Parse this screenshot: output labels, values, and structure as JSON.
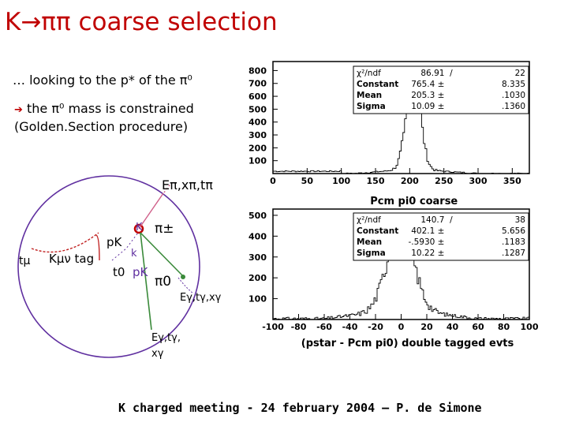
{
  "title": "K→ππ coarse selection",
  "subtitle_line1": "… looking to the p* of the π⁰",
  "subtitle_arrow": "➔",
  "subtitle_line2": " the π⁰ mass is constrained",
  "subtitle_line3": "(Golden.Section procedure)",
  "footer": "K charged meeting  - 24 february 2004 – P. de Simone",
  "colors": {
    "title": "#c00000",
    "track_green": "#3a8a3a",
    "track_violet": "#6030a0",
    "track_pink": "#d0608a",
    "track_red": "#c02020"
  },
  "diagram": {
    "label_pi_track": "Eπ,xπ,tπ",
    "label_t_mu": "tμ",
    "label_k_tag": "Kμν tag",
    "label_pk": "pK",
    "label_k": "K",
    "label_k_small": "k",
    "label_t0": "t0",
    "label_pk2": "pK",
    "label_pi_pm": "π±",
    "label_pi0": "π0",
    "label_gamma1": "Eγ,tγ,xγ",
    "label_gamma2_a": "Eγ,tγ,",
    "label_gamma2_b": "xγ"
  },
  "chart_data": [
    {
      "type": "histogram",
      "title": "",
      "xlabel": "",
      "xlim": [
        0,
        375
      ],
      "ylim": [
        0,
        870
      ],
      "xticks": [
        "0",
        "50",
        "100",
        "150",
        "200",
        "250",
        "300",
        "350"
      ],
      "yticks": [
        "100",
        "200",
        "300",
        "400",
        "500",
        "600",
        "700",
        "800"
      ],
      "fit": {
        "function": "gaussian",
        "constant": 765.4,
        "mean": 205.3,
        "sigma": 10.09
      },
      "stats": [
        {
          "name": "χ²/ndf",
          "value": "86.91",
          "sep": "/",
          "error": "22"
        },
        {
          "name": "Constant",
          "value": "765.4 ±",
          "sep": "",
          "error": "8.335"
        },
        {
          "name": "Mean",
          "value": "205.3 ±",
          "sep": "",
          "error": ".1030"
        },
        {
          "name": "Sigma",
          "value": "10.09 ±",
          "sep": "",
          "error": ".1360"
        }
      ]
    },
    {
      "type": "histogram",
      "title": "Pcm pi0 coarse",
      "xlabel": "(pstar - Pcm pi0) double tagged evts",
      "xlim": [
        -100,
        100
      ],
      "ylim": [
        0,
        530
      ],
      "xticks": [
        "-100",
        "-80",
        "-60",
        "-40",
        "-20",
        "0",
        "20",
        "40",
        "60",
        "80",
        "100"
      ],
      "yticks": [
        "100",
        "200",
        "300",
        "400",
        "500"
      ],
      "fit": {
        "function": "gaussian",
        "constant": 402.1,
        "mean": -0.593,
        "sigma": 10.22
      },
      "stats": [
        {
          "name": "χ²/ndf",
          "value": "140.7",
          "sep": "/",
          "error": "38"
        },
        {
          "name": "Constant",
          "value": "402.1 ±",
          "sep": "",
          "error": "5.656"
        },
        {
          "name": "Mean",
          "value": "-.5930 ±",
          "sep": "",
          "error": ".1183"
        },
        {
          "name": "Sigma",
          "value": "10.22 ±",
          "sep": "",
          "error": ".1287"
        }
      ]
    }
  ]
}
